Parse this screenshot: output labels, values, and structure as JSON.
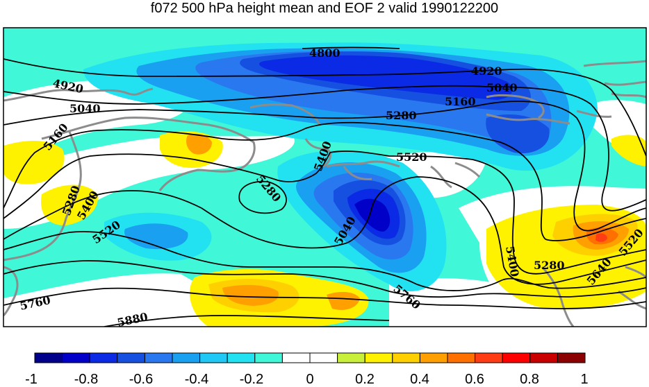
{
  "title": "f072 500 hPa height mean and EOF 2 valid 1990122200",
  "contour_labels": [
    "4800",
    "4920",
    "5040",
    "5160",
    "5280",
    "5400",
    "5520",
    "5640",
    "5760",
    "5880"
  ],
  "colorbar": {
    "tick_labels": [
      "-1",
      "-0.8",
      "-0.6",
      "-0.4",
      "-0.2",
      "0",
      "0.2",
      "0.4",
      "0.6",
      "0.8",
      "1"
    ],
    "colors": [
      "#00008b",
      "#0000c8",
      "#0a2ae6",
      "#1650e0",
      "#2a78f0",
      "#1aa0f0",
      "#20c8f6",
      "#22e2f2",
      "#40f8d8",
      "#ffffff",
      "#ffffff",
      "#c8f03a",
      "#fff200",
      "#ffd000",
      "#ff9f00",
      "#ff7000",
      "#ff3c14",
      "#ff0000",
      "#c80000",
      "#8b0000"
    ]
  },
  "colors": {
    "land_outline": "#8c8c8c",
    "contour_line": "#000000",
    "base_fill": "#40f8d8"
  }
}
